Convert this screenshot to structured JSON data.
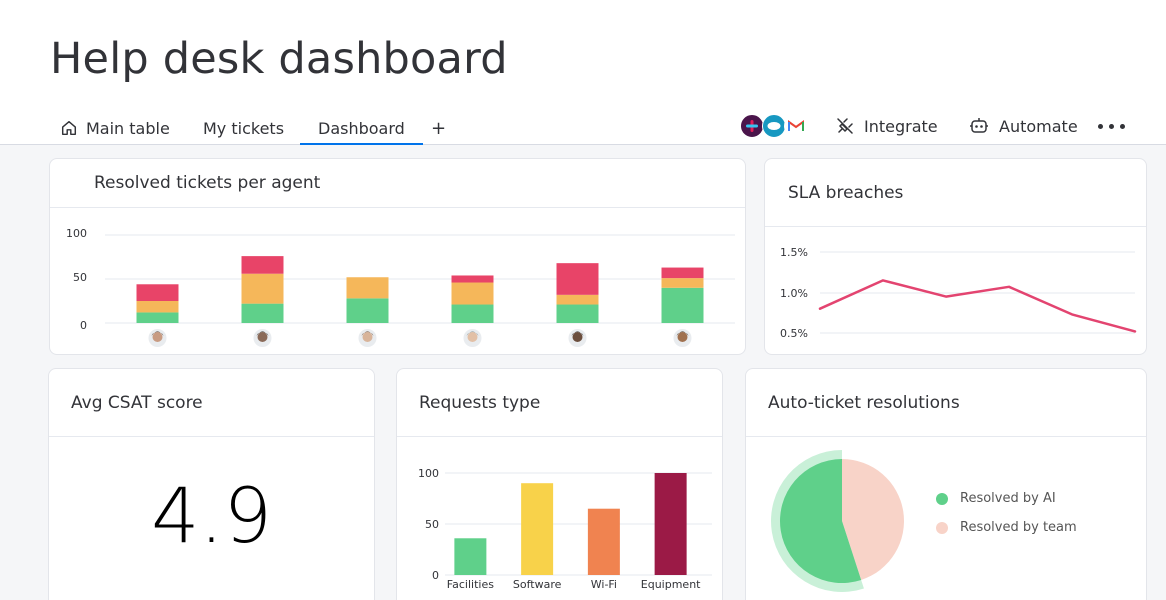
{
  "header": {
    "title": "Help desk dashboard"
  },
  "tabs": [
    {
      "label": "Main table"
    },
    {
      "label": "My tickets"
    },
    {
      "label": "Dashboard",
      "active": true
    }
  ],
  "add_tab_label": "+",
  "toolbar": {
    "integrate_label": "Integrate",
    "automate_label": "Automate"
  },
  "integrations": [
    "slack-icon",
    "salesforce-icon",
    "gmail-icon"
  ],
  "colors": {
    "green": "#5fd08a",
    "orange": "#f5b75a",
    "red": "#e84468",
    "yellow": "#f8d24a",
    "coral": "#f08350",
    "maroon": "#9b1a46",
    "pink": "#e34470",
    "peach": "#f8d3c8"
  },
  "cards": {
    "resolved": {
      "title": "Resolved tickets per agent"
    },
    "sla": {
      "title": "SLA breaches"
    },
    "csat": {
      "title": "Avg CSAT score",
      "value": "4.9"
    },
    "requests": {
      "title": "Requests type"
    },
    "auto": {
      "title": "Auto-ticket resolutions"
    }
  },
  "chart_data": [
    {
      "type": "bar",
      "stacked": true,
      "title": "Resolved tickets per agent",
      "categories": [
        "agent-1",
        "agent-2",
        "agent-3",
        "agent-4",
        "agent-5",
        "agent-6"
      ],
      "category_display": "avatar",
      "series": [
        {
          "color": "#5fd08a",
          "values": [
            12,
            22,
            28,
            21,
            21,
            40
          ]
        },
        {
          "color": "#f5b75a",
          "values": [
            13,
            34,
            24,
            25,
            11,
            11
          ]
        },
        {
          "color": "#e84468",
          "values": [
            19,
            20,
            0,
            8,
            36,
            12
          ]
        }
      ],
      "y_ticks": [
        "100",
        "50",
        "0"
      ],
      "ylim": [
        0,
        100
      ]
    },
    {
      "type": "line",
      "title": "SLA breaches",
      "color": "#e34470",
      "x": [
        1,
        2,
        3,
        4,
        5,
        6
      ],
      "y": [
        0.8,
        1.15,
        0.95,
        1.07,
        0.73,
        0.52
      ],
      "y_ticks": [
        "1.5%",
        "1.0%",
        "0.5%"
      ],
      "ylim": [
        0.4,
        1.6
      ]
    },
    {
      "type": "bar",
      "title": "Requests type",
      "categories": [
        "Facilities",
        "Software",
        "Wi-Fi",
        "Equipment"
      ],
      "values": [
        36,
        90,
        65,
        100
      ],
      "colors": [
        "#5fd08a",
        "#f8d24a",
        "#f08350",
        "#9b1a46"
      ],
      "y_ticks": [
        "100",
        "50",
        "0"
      ],
      "ylim": [
        0,
        100
      ]
    },
    {
      "type": "pie",
      "title": "Auto-ticket resolutions",
      "labels": [
        "Resolved by AI",
        "Resolved by team"
      ],
      "values": [
        55,
        45
      ],
      "colors": [
        "#5fd08a",
        "#f8d3c8"
      ]
    }
  ]
}
